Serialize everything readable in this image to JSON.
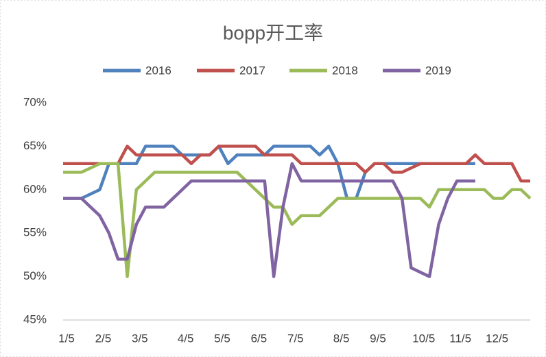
{
  "chart_data": {
    "type": "line",
    "title": "bopp开工率",
    "categories": [
      "1/5",
      null,
      null,
      null,
      "2/5",
      null,
      null,
      null,
      "3/5",
      null,
      null,
      null,
      null,
      "4/5",
      null,
      null,
      null,
      "5/5",
      null,
      null,
      null,
      "6/5",
      null,
      null,
      null,
      "7/5",
      null,
      null,
      null,
      null,
      "8/5",
      null,
      null,
      null,
      "9/5",
      null,
      null,
      null,
      null,
      "10/5",
      null,
      null,
      null,
      "11/5",
      null,
      null,
      null,
      "12/5",
      null,
      null,
      null,
      null
    ],
    "series": [
      {
        "name": "2016",
        "color": "#4f81bd",
        "values": [
          59,
          59,
          59,
          59.5,
          60,
          63,
          63,
          63,
          63,
          65,
          65,
          65,
          65,
          64,
          64,
          64,
          64,
          65,
          63,
          64,
          64,
          64,
          64,
          65,
          65,
          65,
          65,
          65,
          64,
          65,
          63,
          59,
          59,
          62,
          63,
          63,
          63,
          63,
          63,
          63,
          63,
          63,
          63,
          63,
          63,
          63,
          null,
          null,
          null,
          null,
          null,
          null
        ]
      },
      {
        "name": "2017",
        "color": "#c0504d",
        "values": [
          63,
          63,
          63,
          63,
          63,
          63,
          63,
          65,
          64,
          64,
          64,
          64,
          64,
          64,
          63,
          64,
          64,
          65,
          65,
          65,
          65,
          65,
          64,
          64,
          64,
          64,
          63,
          63,
          63,
          63,
          63,
          63,
          63,
          62,
          63,
          63,
          62,
          62,
          62.5,
          63,
          63,
          63,
          63,
          63,
          63,
          64,
          63,
          63,
          63,
          63,
          61,
          61
        ]
      },
      {
        "name": "2018",
        "color": "#9bbb59",
        "values": [
          62,
          62,
          62,
          62.5,
          63,
          63,
          63,
          50,
          60,
          61,
          62,
          62,
          62,
          62,
          62,
          62,
          62,
          62,
          62,
          62,
          61,
          60,
          59,
          58,
          58,
          56,
          57,
          57,
          57,
          58,
          59,
          59,
          59,
          59,
          59,
          59,
          59,
          59,
          59,
          59,
          58,
          60,
          60,
          60,
          60,
          60,
          60,
          59,
          59,
          60,
          60,
          59
        ]
      },
      {
        "name": "2019",
        "color": "#8064a2",
        "values": [
          59,
          59,
          59,
          58,
          57,
          55,
          52,
          52,
          56,
          58,
          58,
          58,
          59,
          60,
          61,
          61,
          61,
          61,
          61,
          61,
          61,
          61,
          61,
          50,
          58,
          63,
          61,
          61,
          61,
          61,
          61,
          61,
          61,
          61,
          61,
          61,
          61,
          59,
          51,
          50.5,
          50,
          56,
          59,
          61,
          61,
          61,
          null,
          null,
          null,
          null,
          null,
          null
        ]
      }
    ],
    "ylim": [
      45,
      70
    ],
    "yticks": [
      {
        "value": 45,
        "label": "45%"
      },
      {
        "value": 50,
        "label": "50%"
      },
      {
        "value": 55,
        "label": "55%"
      },
      {
        "value": 60,
        "label": "60%"
      },
      {
        "value": 65,
        "label": "65%"
      },
      {
        "value": 70,
        "label": "70%"
      }
    ],
    "grid": false
  }
}
